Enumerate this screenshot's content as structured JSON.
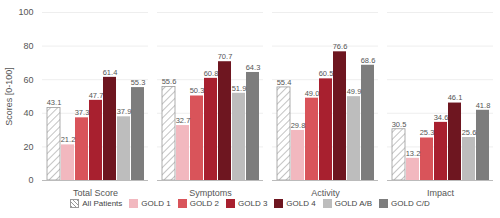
{
  "chart_data": {
    "type": "bar",
    "categories": [
      "Total Score",
      "Symptoms",
      "Activity",
      "Impact"
    ],
    "y_label": "Scores [0-100]",
    "ylim": [
      0,
      100
    ],
    "yticks": [
      0,
      20,
      40,
      60,
      80,
      100
    ],
    "grid": true,
    "data_labels": true,
    "legend": "bottom",
    "series": [
      {
        "name": "All Patients",
        "color": "#ffffff",
        "values": [
          43.1,
          55.6,
          55.4,
          30.5
        ],
        "value_labels": [
          "43.1",
          "55.6",
          "55.4",
          "30.5"
        ]
      },
      {
        "name": "GOLD 1",
        "color": "#f2b8bf",
        "values": [
          21.2,
          32.7,
          29.8,
          13.2
        ],
        "value_labels": [
          "21.2",
          "32.7",
          "29.8",
          "13.2"
        ]
      },
      {
        "name": "GOLD 2",
        "color": "#d9545a",
        "values": [
          37.3,
          50.3,
          49.0,
          25.3
        ],
        "value_labels": [
          "37.3",
          "50.3",
          "49.0",
          "25.3"
        ]
      },
      {
        "name": "GOLD 3",
        "color": "#a8202f",
        "values": [
          47.7,
          60.8,
          60.5,
          34.6
        ],
        "value_labels": [
          "47.7",
          "60.8",
          "60.5",
          "34.6"
        ]
      },
      {
        "name": "GOLD 4",
        "color": "#6e1620",
        "values": [
          61.4,
          70.7,
          76.6,
          46.1
        ],
        "value_labels": [
          "61.4",
          "70.7",
          "76.6",
          "46.1"
        ]
      },
      {
        "name": "GOLD A/B",
        "color": "#bdbdbd",
        "values": [
          37.9,
          51.9,
          49.9,
          25.6
        ],
        "value_labels": [
          "37.9",
          "51.9",
          "49.9",
          "25.6"
        ]
      },
      {
        "name": "GOLD C/D",
        "color": "#7d7d7d",
        "values": [
          55.3,
          64.3,
          68.6,
          41.8
        ],
        "value_labels": [
          "55.3",
          "64.3",
          "68.6",
          "41.8"
        ]
      }
    ]
  }
}
